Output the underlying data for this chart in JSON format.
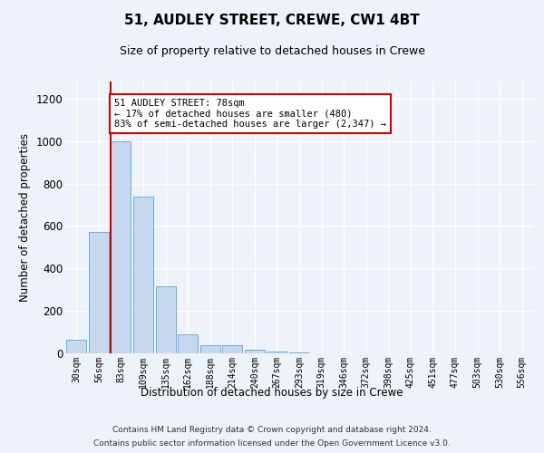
{
  "title1": "51, AUDLEY STREET, CREWE, CW1 4BT",
  "title2": "Size of property relative to detached houses in Crewe",
  "xlabel": "Distribution of detached houses by size in Crewe",
  "ylabel": "Number of detached properties",
  "categories": [
    "30sqm",
    "56sqm",
    "83sqm",
    "109sqm",
    "135sqm",
    "162sqm",
    "188sqm",
    "214sqm",
    "240sqm",
    "267sqm",
    "293sqm",
    "319sqm",
    "346sqm",
    "372sqm",
    "398sqm",
    "425sqm",
    "451sqm",
    "477sqm",
    "503sqm",
    "530sqm",
    "556sqm"
  ],
  "values": [
    65,
    570,
    1000,
    740,
    315,
    90,
    38,
    38,
    18,
    10,
    3,
    2,
    1,
    0,
    0,
    0,
    0,
    0,
    0,
    0,
    0
  ],
  "bar_color": "#c5d8f0",
  "bar_edgecolor": "#6aaed6",
  "annotation_title": "51 AUDLEY STREET: 78sqm",
  "annotation_line1": "← 17% of detached houses are smaller (480)",
  "annotation_line2": "83% of semi-detached houses are larger (2,347) →",
  "annotation_box_facecolor": "#ffffff",
  "annotation_box_edgecolor": "#cc0000",
  "vline_color": "#cc0000",
  "ylim": [
    0,
    1280
  ],
  "yticks": [
    0,
    200,
    400,
    600,
    800,
    1000,
    1200
  ],
  "footnote1": "Contains HM Land Registry data © Crown copyright and database right 2024.",
  "footnote2": "Contains public sector information licensed under the Open Government Licence v3.0.",
  "background_color": "#eef2fa",
  "plot_bg_color": "#eef2fa",
  "grid_color": "#ffffff"
}
